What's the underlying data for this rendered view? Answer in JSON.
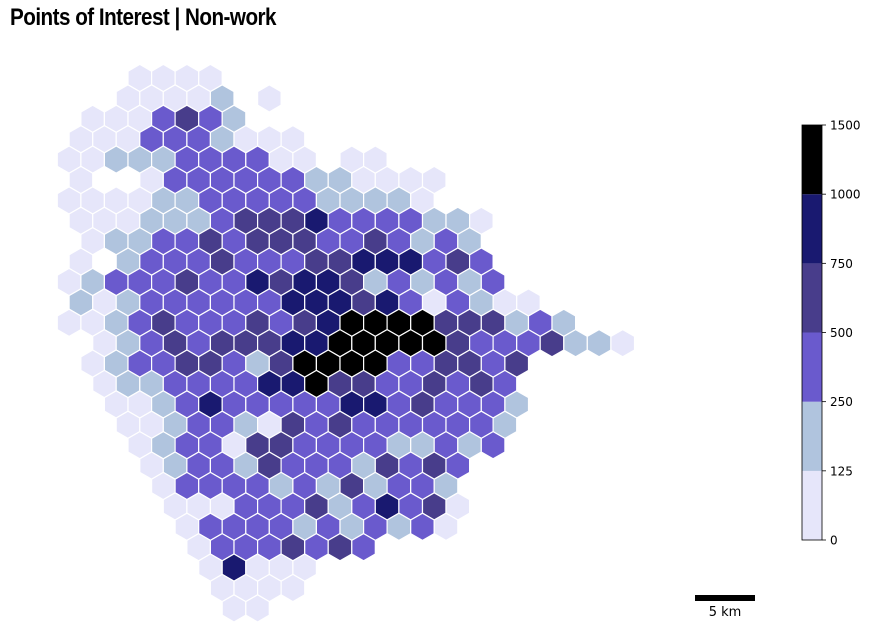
{
  "title": "Points of Interest | Non-work",
  "colors": {
    "bins": [
      "#e6e6fa",
      "#b0c4de",
      "#6a5acd",
      "#483d8b",
      "#191970",
      "#000000"
    ],
    "hex_edge": "#ffffff"
  },
  "colorbar": {
    "ticks": [
      "0",
      "125",
      "250",
      "500",
      "750",
      "1000",
      "1500"
    ]
  },
  "scale_bar": {
    "label": "5 km"
  },
  "chart_data": {
    "type": "heatmap",
    "title": "Points of Interest | Non-work",
    "value_bins": [
      {
        "range": "0–125",
        "color": "#e6e6fa"
      },
      {
        "range": "125–250",
        "color": "#b0c4de"
      },
      {
        "range": "250–500",
        "color": "#6a5acd"
      },
      {
        "range": "500–750",
        "color": "#483d8b"
      },
      {
        "range": "750–1000",
        "color": "#191970"
      },
      {
        "range": "1000–1500",
        "color": "#000000"
      }
    ],
    "map_rows": [
      ".....0000.........",
      "....00001.0.......",
      "...0002321........",
      "..0002221000......",
      "..00111222200.00..",
      "..0..0222222110000",
      "..0000112222211110",
      "..000111233342222110",
      "...01122323332232121",
      "..0.1222322233444232",
      "..0122232243443121212",
      "..10122222244434202100",
      "..0012322232345555333121",
      "...01232333445555532223110",
      "...0122332135555223323",
      "...011222244533223232",
      "....001242222244232221",
      "....00122103232222221",
      ".....0122033222211212",
      ".....01221322213232",
      "......0222212131221",
      "......0002223124230",
      ".......022221212120",
      ".......02223232",
      "........04000",
      "........0000",
      ".........00"
    ]
  }
}
